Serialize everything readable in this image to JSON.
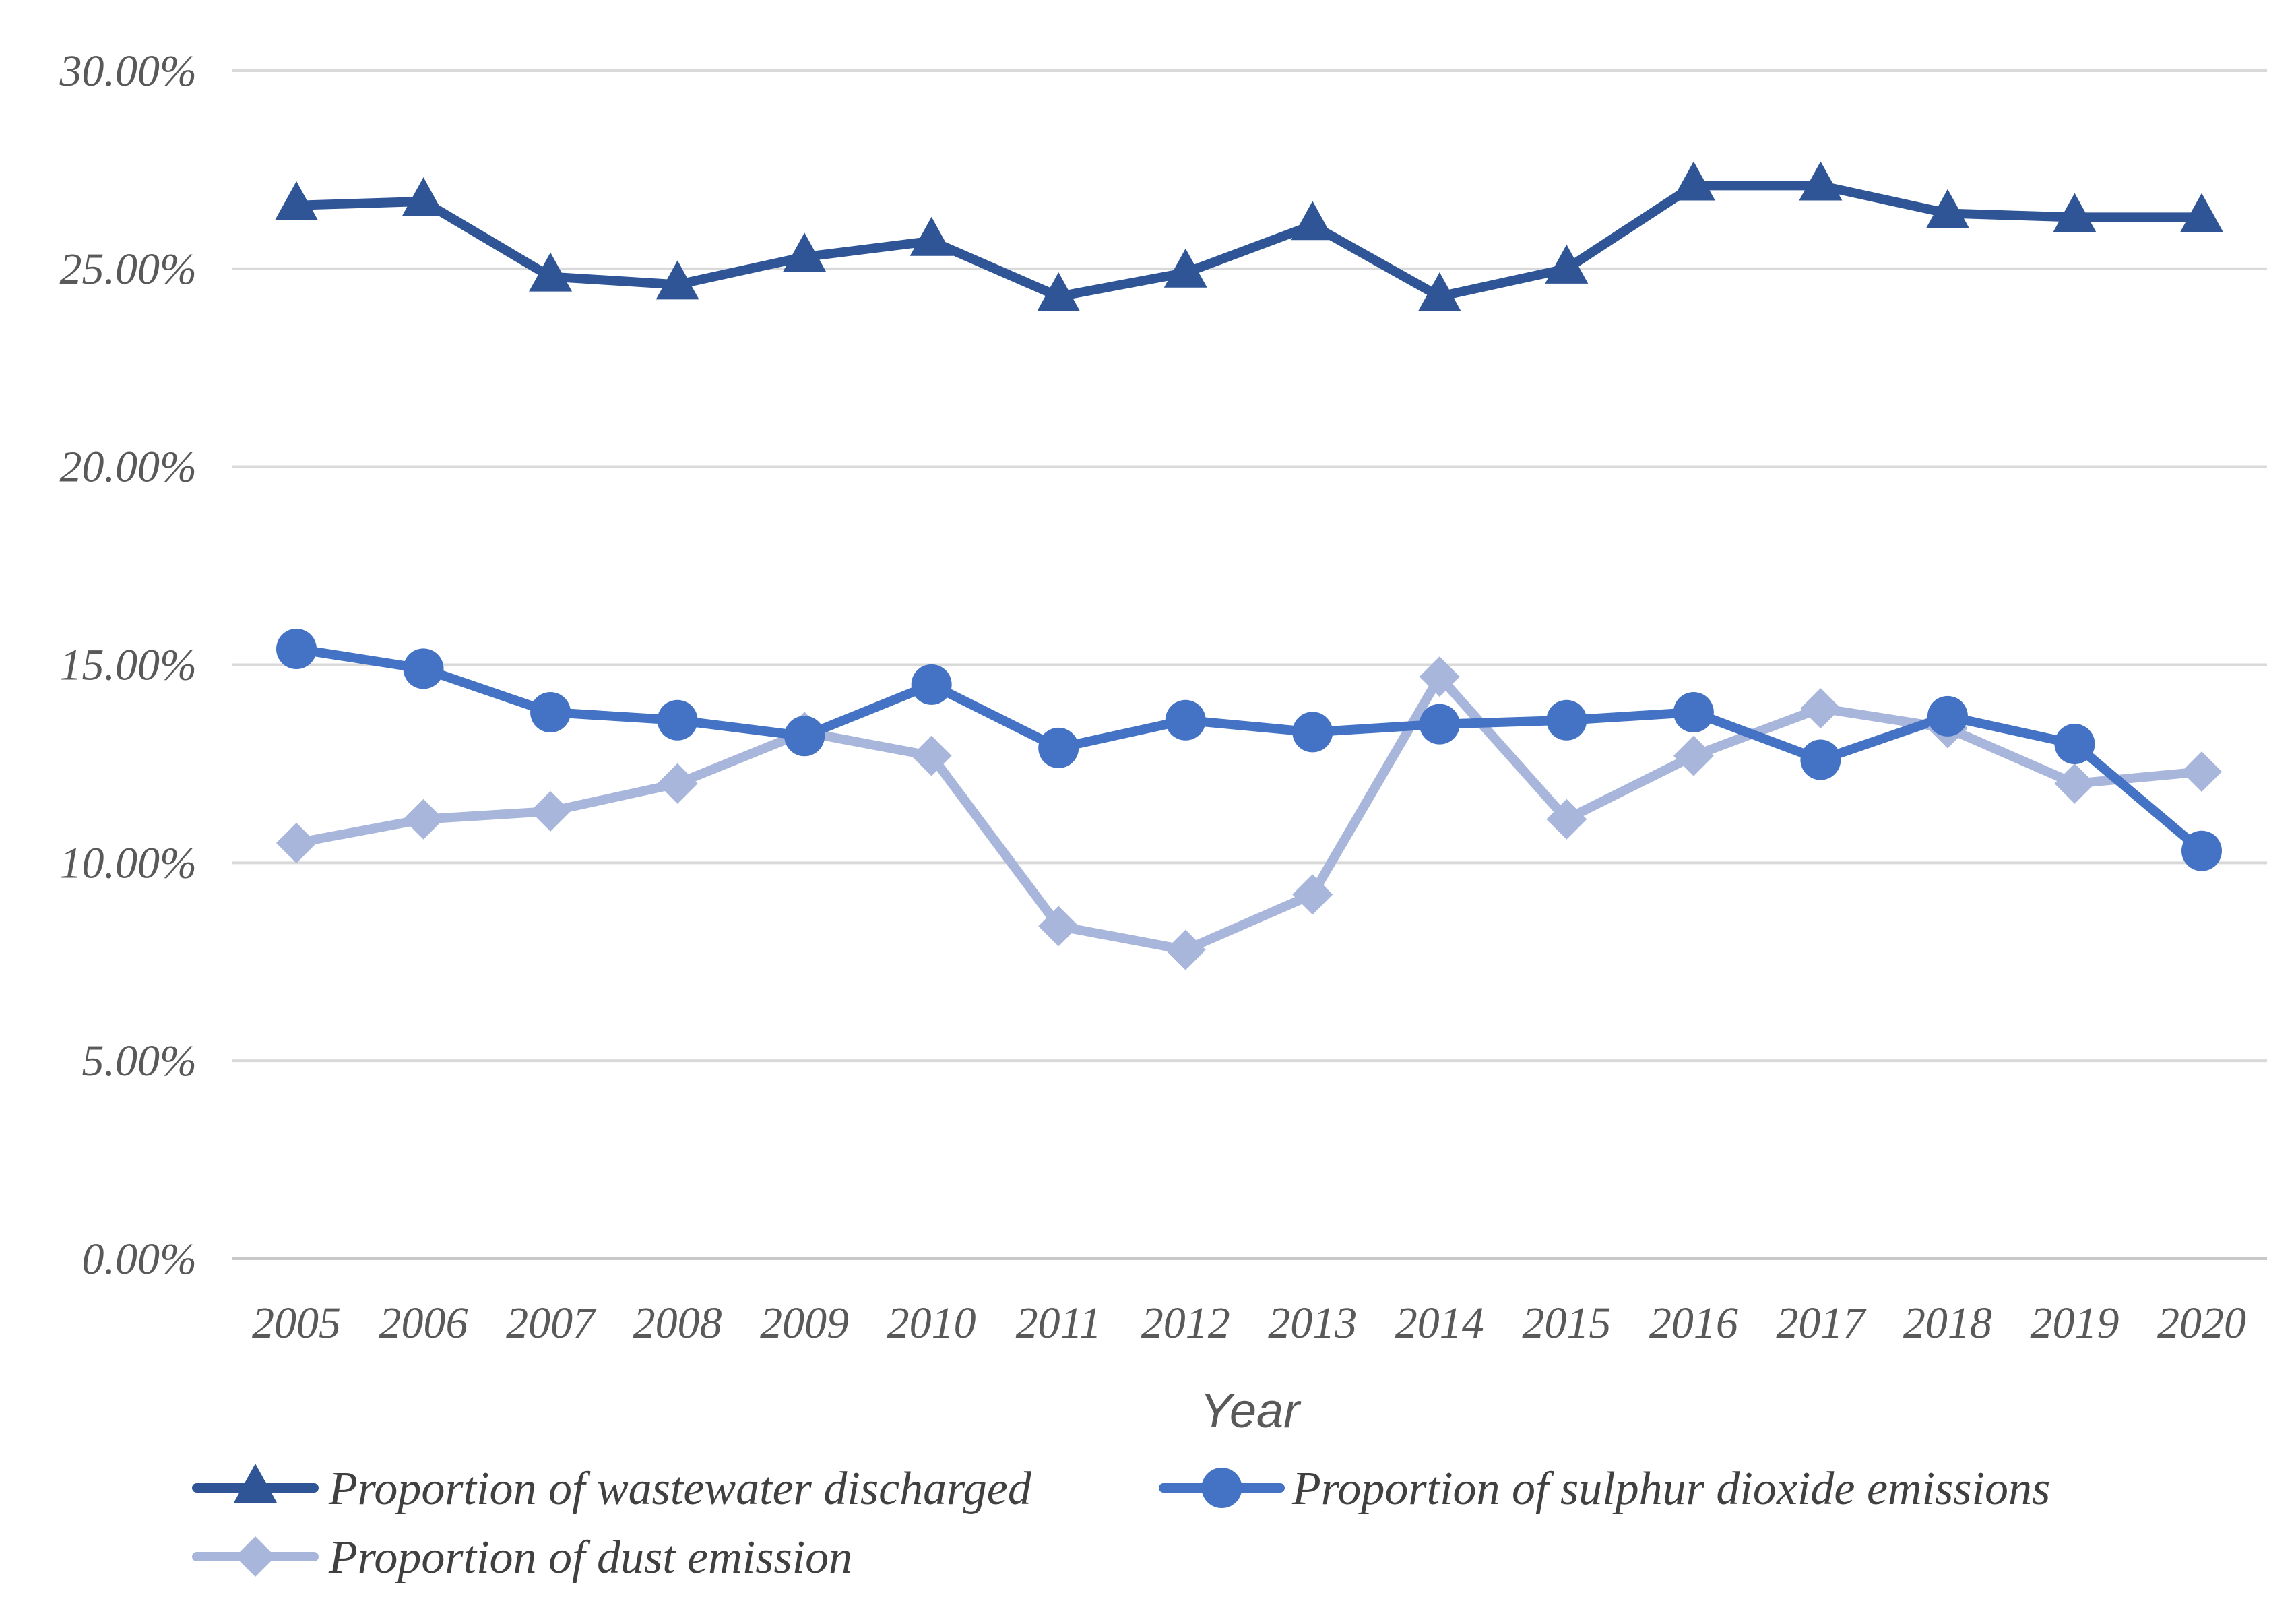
{
  "colors": {
    "wastewater": "#2f5597",
    "sulphur": "#4472c4",
    "dust": "#a9b6dc",
    "grid": "#d9d9d9",
    "text": "#595959"
  },
  "chart_data": {
    "type": "line",
    "title": "",
    "xlabel": "Year",
    "ylabel": "",
    "categories": [
      "2005",
      "2006",
      "2007",
      "2008",
      "2009",
      "2010",
      "2011",
      "2012",
      "2013",
      "2014",
      "2015",
      "2016",
      "2017",
      "2018",
      "2019",
      "2020"
    ],
    "ylim": [
      0,
      30
    ],
    "yticks": [
      0,
      5,
      10,
      15,
      20,
      25,
      30
    ],
    "ytick_labels": [
      "0.00%",
      "5.00%",
      "10.00%",
      "15.00%",
      "20.00%",
      "25.00%",
      "30.00%"
    ],
    "grid": true,
    "legend_position": "bottom",
    "series": [
      {
        "name": "Proportion of wastewater discharged",
        "marker": "triangle",
        "color": "#2f5597",
        "values": [
          26.6,
          26.7,
          24.8,
          24.6,
          25.3,
          25.7,
          24.3,
          24.9,
          26.1,
          24.3,
          25.0,
          27.1,
          27.1,
          26.4,
          26.3,
          26.3
        ]
      },
      {
        "name": "Proportion of sulphur dioxide emissions",
        "marker": "circle",
        "color": "#4472c4",
        "values": [
          15.4,
          14.9,
          13.8,
          13.6,
          13.2,
          14.5,
          12.9,
          13.6,
          13.3,
          13.5,
          13.6,
          13.8,
          12.6,
          13.7,
          13.0,
          10.3
        ]
      },
      {
        "name": "Proportion of dust emission",
        "marker": "diamond",
        "color": "#a9b6dc",
        "values": [
          10.5,
          11.1,
          11.3,
          12.0,
          13.3,
          12.7,
          8.4,
          7.8,
          9.2,
          14.7,
          11.1,
          12.7,
          13.9,
          13.4,
          12.0,
          12.3
        ]
      }
    ]
  }
}
